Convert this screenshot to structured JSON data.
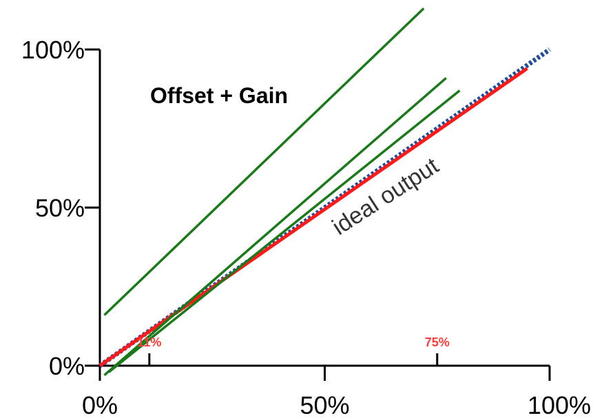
{
  "chart_data": {
    "type": "line",
    "title": "Offset + Gain",
    "xlabel": "",
    "ylabel": "",
    "x_ticks": [
      "0%",
      "50%",
      "100%"
    ],
    "y_ticks": [
      "0%",
      "50%",
      "100%"
    ],
    "xlim": [
      0,
      100
    ],
    "ylim": [
      0,
      100
    ],
    "grid": false,
    "annotation": "ideal output",
    "markers": [
      {
        "label": "11%",
        "x": 11
      },
      {
        "label": "75%",
        "x": 75
      }
    ],
    "series": [
      {
        "x": [
          0,
          100
        ],
        "y": [
          0,
          100
        ],
        "color": "#1f4e9c",
        "style": "dotted"
      },
      {
        "x": [
          0,
          95
        ],
        "y": [
          0,
          94
        ],
        "color": "#ff1a1a",
        "style": "solid"
      },
      {
        "x": [
          1,
          72
        ],
        "y": [
          16,
          113
        ],
        "color": "#1a7a1a",
        "style": "solid"
      },
      {
        "x": [
          1,
          77
        ],
        "y": [
          -3,
          91
        ],
        "color": "#1a7a1a",
        "style": "solid"
      },
      {
        "x": [
          2,
          80
        ],
        "y": [
          -2,
          87
        ],
        "color": "#1a7a1a",
        "style": "solid"
      }
    ]
  }
}
